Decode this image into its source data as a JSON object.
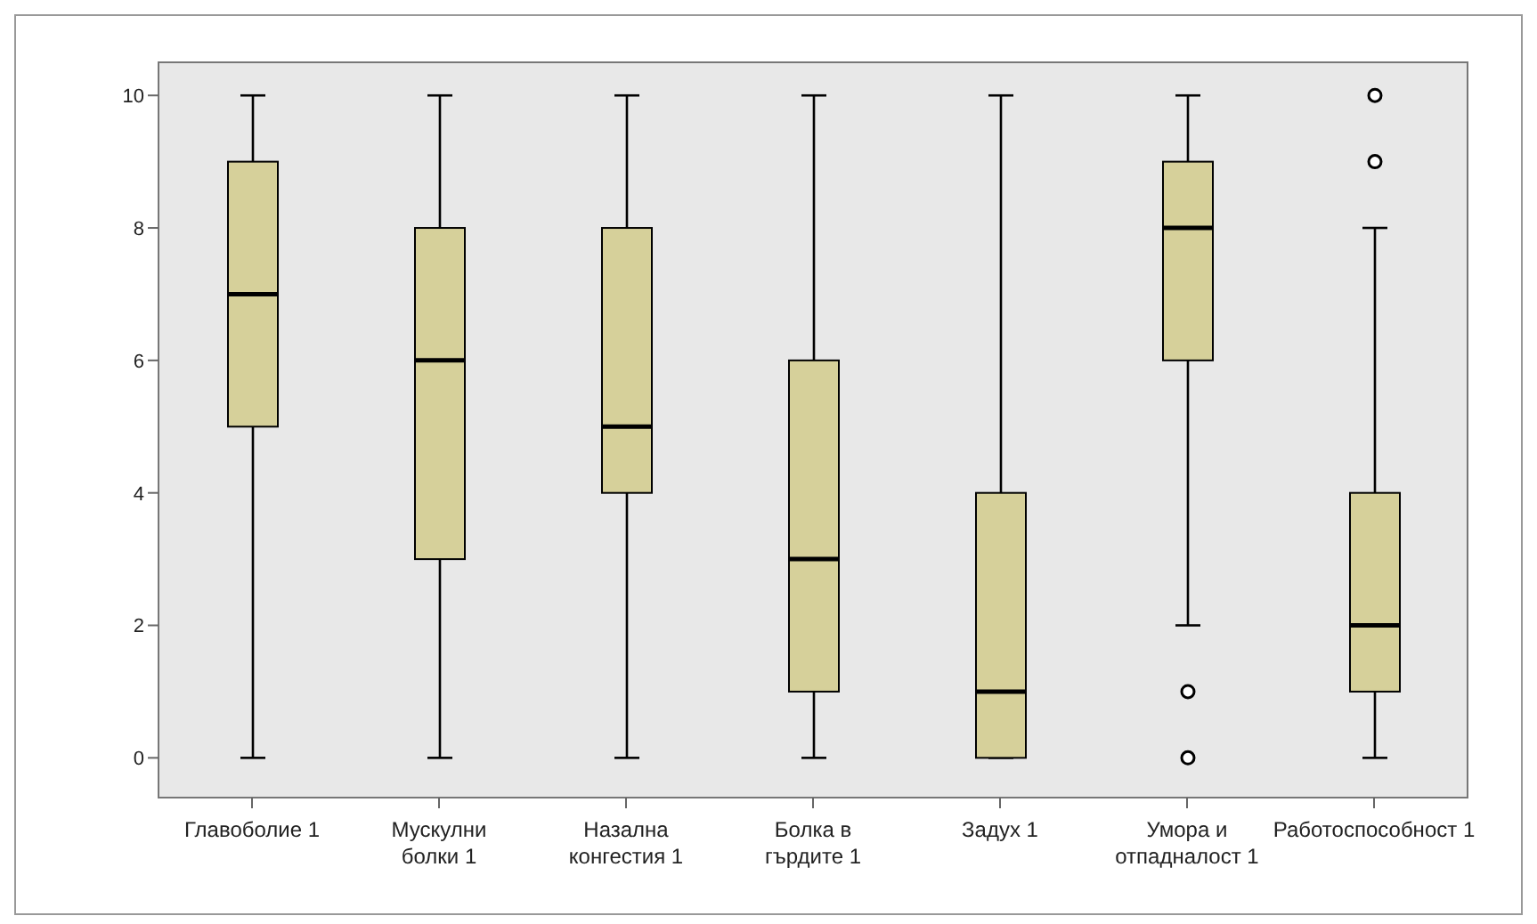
{
  "chart_data": {
    "type": "box",
    "categories": [
      "Главоболие 1",
      "Мускулни болки 1",
      "Назална конгестия 1",
      "Болка в гърдите 1",
      "Задух 1",
      "Умора и отпадналост 1",
      "Работоспособност 1"
    ],
    "color": "#d6d09a",
    "boxes": [
      {
        "low": 0,
        "q1": 5,
        "median": 7,
        "q3": 9,
        "high": 10
      },
      {
        "low": 0,
        "q1": 3,
        "median": 6,
        "q3": 8,
        "high": 10
      },
      {
        "low": 0,
        "q1": 4,
        "median": 5,
        "q3": 8,
        "high": 10
      },
      {
        "low": 0,
        "q1": 1,
        "median": 3,
        "q3": 6,
        "high": 10
      },
      {
        "low": 0,
        "q1": 0,
        "median": 1,
        "q3": 4,
        "high": 10
      },
      {
        "low": 2,
        "q1": 6,
        "median": 8,
        "q3": 9,
        "high": 10,
        "outliers": [
          1,
          0
        ]
      },
      {
        "low": 0,
        "q1": 1,
        "median": 2,
        "q3": 4,
        "high": 8,
        "outliers": [
          9,
          10
        ]
      }
    ],
    "ylim": [
      -0.6,
      10.5
    ],
    "yticks": [
      0,
      2,
      4,
      6,
      8,
      10
    ]
  }
}
